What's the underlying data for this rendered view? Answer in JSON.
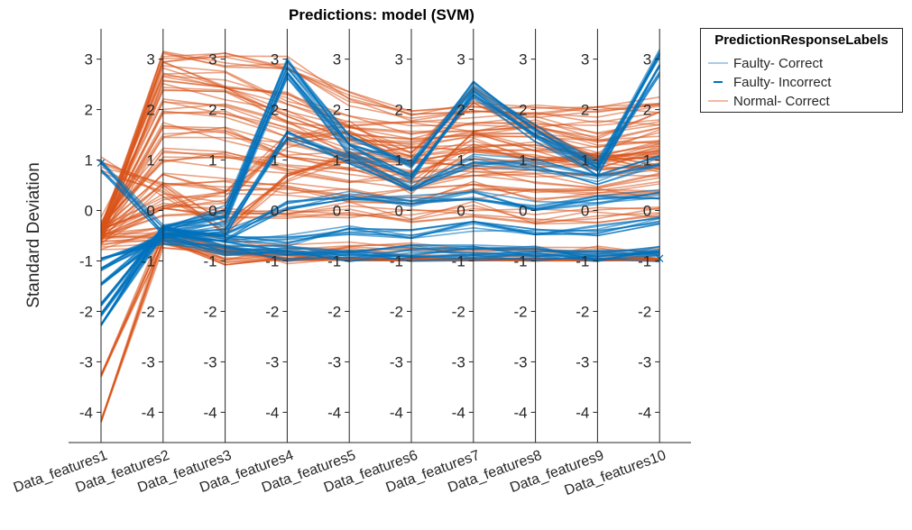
{
  "chart_data": {
    "type": "parallel_coordinates",
    "title": "Predictions: model (SVM)",
    "ylabel": "Standard Deviation",
    "ylim": [
      -4.6,
      3.6
    ],
    "yticks": [
      3,
      2,
      1,
      0,
      -1,
      -2,
      -3,
      -4
    ],
    "categories": [
      "Data_features1",
      "Data_features2",
      "Data_features3",
      "Data_features4",
      "Data_features5",
      "Data_features6",
      "Data_features7",
      "Data_features8",
      "Data_features9",
      "Data_features10"
    ],
    "legend": {
      "title": "PredictionResponseLabels",
      "position": "outside-top-right",
      "entries": [
        {
          "name": "Faulty- Correct",
          "color": "#a9cbe8",
          "style": "light"
        },
        {
          "name": "Faulty- Incorrect",
          "color": "#0072bd",
          "style": "solid"
        },
        {
          "name": "Normal- Correct",
          "color": "#f2b9a0",
          "style": "light"
        }
      ]
    },
    "series": [
      {
        "name": "Normal- Correct",
        "color": "#d95319",
        "typical_profiles": [
          [
            -0.5,
            3.0,
            3.0,
            2.9,
            2.2,
            1.9,
            2.0,
            2.0,
            1.9,
            2.1
          ],
          [
            -0.4,
            2.8,
            2.6,
            2.2,
            1.8,
            1.6,
            1.7,
            1.8,
            1.6,
            1.8
          ],
          [
            -0.5,
            2.5,
            2.3,
            1.9,
            1.5,
            1.4,
            1.4,
            1.5,
            1.3,
            1.5
          ],
          [
            -0.3,
            2.1,
            2.0,
            1.6,
            1.2,
            1.1,
            1.2,
            1.2,
            1.1,
            1.2
          ],
          [
            -0.5,
            1.6,
            1.5,
            1.2,
            1.0,
            0.9,
            1.0,
            1.0,
            0.9,
            1.0
          ],
          [
            -0.4,
            1.1,
            1.0,
            0.9,
            0.7,
            0.6,
            0.7,
            0.7,
            0.6,
            0.8
          ],
          [
            -0.5,
            0.6,
            0.5,
            0.4,
            0.3,
            0.3,
            0.4,
            0.3,
            0.3,
            0.4
          ],
          [
            -0.5,
            0.0,
            -0.1,
            -0.1,
            0.0,
            -0.1,
            0.0,
            -0.1,
            -0.1,
            0.0
          ],
          [
            -0.6,
            -0.5,
            -0.7,
            -0.8,
            -0.8,
            -0.8,
            -0.8,
            -0.8,
            -0.8,
            -0.8
          ],
          [
            -0.6,
            -0.6,
            -0.9,
            -1.0,
            -1.0,
            -1.0,
            -1.0,
            -1.0,
            -1.0,
            -1.0
          ],
          [
            -4.2,
            -0.6,
            -0.9,
            -1.0,
            -1.0,
            -1.0,
            -1.0,
            -1.0,
            -1.0,
            -1.0
          ],
          [
            -3.3,
            -0.5,
            -0.8,
            -0.9,
            -1.0,
            -1.0,
            -1.0,
            -1.0,
            -1.0,
            -1.0
          ],
          [
            0.9,
            0.4,
            -0.3,
            0.6,
            1.1,
            0.5,
            1.4,
            1.1,
            1.0,
            0.9
          ],
          [
            -0.5,
            0.2,
            0.3,
            1.4,
            1.6,
            1.0,
            2.3,
            1.6,
            0.9,
            1.2
          ]
        ]
      },
      {
        "name": "Faulty",
        "color": "#0072bd",
        "typical_profiles": [
          [
            -1.9,
            -0.4,
            0.0,
            2.9,
            1.4,
            0.9,
            2.5,
            1.6,
            0.9,
            3.1
          ],
          [
            -2.1,
            -0.4,
            -0.2,
            2.7,
            1.2,
            0.7,
            2.3,
            1.4,
            0.8,
            2.8
          ],
          [
            -1.5,
            -0.5,
            -0.4,
            1.5,
            1.0,
            0.5,
            1.0,
            0.9,
            0.6,
            1.0
          ],
          [
            -1.2,
            -0.5,
            -0.5,
            0.1,
            0.3,
            0.2,
            0.3,
            0.1,
            0.2,
            0.3
          ],
          [
            -2.3,
            -0.4,
            -0.6,
            -0.6,
            -0.4,
            -0.5,
            -0.3,
            -0.4,
            -0.4,
            -0.2
          ],
          [
            -1.0,
            -0.6,
            -0.8,
            -0.8,
            -0.9,
            -0.8,
            -0.8,
            -0.8,
            -0.9,
            -0.8
          ],
          [
            0.9,
            -0.4,
            -0.7,
            -0.9,
            -0.9,
            -0.9,
            -0.9,
            -0.9,
            -0.9,
            -0.9
          ]
        ]
      }
    ]
  }
}
